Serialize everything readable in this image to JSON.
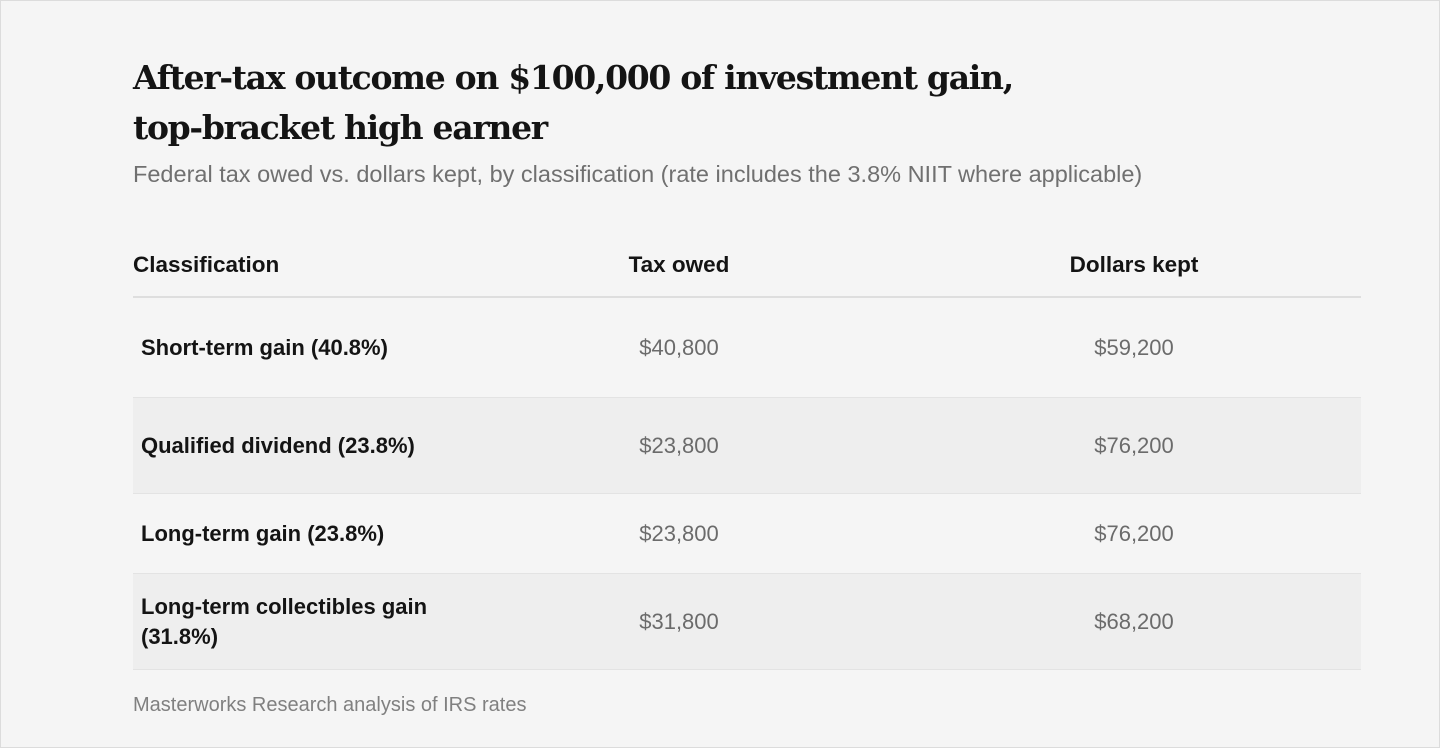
{
  "chart_data": {
    "type": "table",
    "title_line1": "After-tax outcome on $100,000 of investment gain,",
    "title_line2": "top-bracket high earner",
    "subtitle": "Federal tax owed vs. dollars kept, by classification (rate includes the 3.8% NIIT where applicable)",
    "columns": [
      "Classification",
      "Tax owed",
      "Dollars kept"
    ],
    "rows": [
      {
        "classification": "Short-term gain (40.8%)",
        "tax_owed": "$40,800",
        "dollars_kept": "$59,200",
        "tax_owed_value": 40800,
        "dollars_kept_value": 59200
      },
      {
        "classification": "Qualified dividend (23.8%)",
        "tax_owed": "$23,800",
        "dollars_kept": "$76,200",
        "tax_owed_value": 23800,
        "dollars_kept_value": 76200
      },
      {
        "classification": "Long-term gain (23.8%)",
        "tax_owed": "$23,800",
        "dollars_kept": "$76,200",
        "tax_owed_value": 23800,
        "dollars_kept_value": 76200
      },
      {
        "classification": "Long-term collectibles gain (31.8%)",
        "tax_owed": "$31,800",
        "dollars_kept": "$68,200",
        "tax_owed_value": 31800,
        "dollars_kept_value": 68200
      }
    ],
    "source": "Masterworks Research analysis of IRS rates"
  },
  "colors": {
    "background": "#f5f5f5",
    "row_alt": "#eeeeee",
    "title": "#141414",
    "muted": "#707070"
  }
}
